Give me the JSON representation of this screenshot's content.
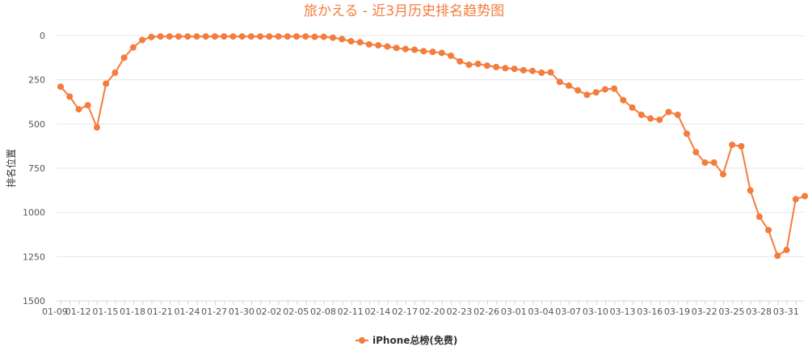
{
  "chart_data": {
    "type": "line",
    "title": "旅かえる - 近3月历史排名趋势图",
    "ylabel": "排名位置",
    "xlabel": "",
    "ylim": [
      0,
      1500
    ],
    "y_inverted": true,
    "y_ticks": [
      0,
      250,
      500,
      750,
      1000,
      1250,
      1500
    ],
    "grid": "horizontal",
    "legend_position": "bottom-center",
    "color": "#f47c3c",
    "x_tick_labels": [
      "01-09",
      "01-12",
      "01-15",
      "01-18",
      "01-21",
      "01-24",
      "01-27",
      "01-30",
      "02-02",
      "02-05",
      "02-08",
      "02-11",
      "02-14",
      "02-17",
      "02-20",
      "02-23",
      "02-26",
      "03-01",
      "03-04",
      "03-07",
      "03-10",
      "03-13",
      "03-16",
      "03-19",
      "03-22",
      "03-25",
      "03-28",
      "03-31"
    ],
    "series": [
      {
        "name": "iPhone总榜(免费)",
        "values": [
          289,
          345,
          417,
          394,
          519,
          272,
          210,
          125,
          67,
          25,
          8,
          5,
          5,
          5,
          5,
          5,
          5,
          5,
          5,
          5,
          5,
          5,
          5,
          5,
          5,
          5,
          5,
          5,
          7,
          7,
          12,
          20,
          32,
          38,
          50,
          55,
          62,
          70,
          76,
          80,
          88,
          92,
          98,
          114,
          146,
          165,
          160,
          170,
          178,
          184,
          188,
          196,
          200,
          210,
          208,
          262,
          283,
          310,
          335,
          321,
          304,
          300,
          365,
          407,
          448,
          469,
          476,
          432,
          448,
          555,
          659,
          718,
          718,
          784,
          618,
          626,
          876,
          1024,
          1100,
          1245,
          1212,
          925,
          908
        ]
      }
    ]
  }
}
